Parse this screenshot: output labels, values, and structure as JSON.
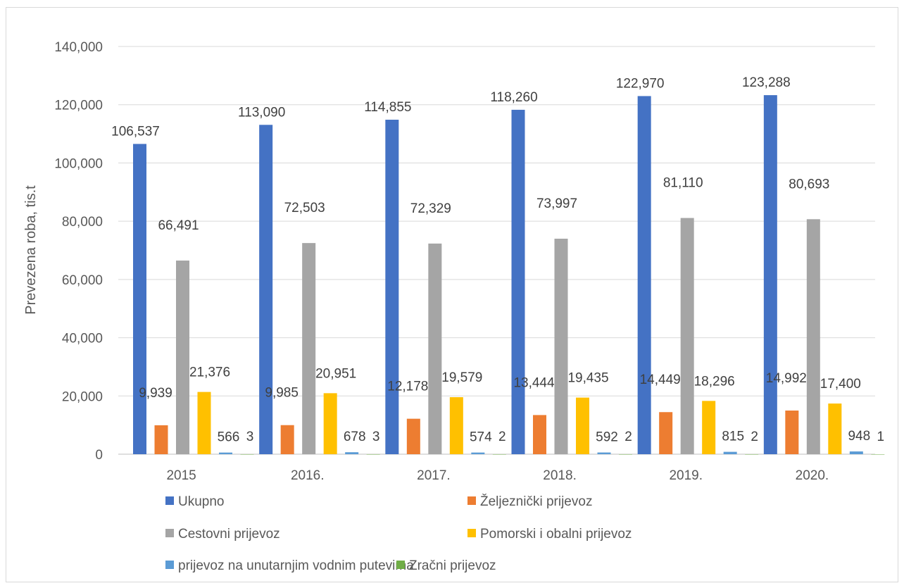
{
  "chart_data": {
    "type": "bar",
    "title": "",
    "xlabel": "",
    "ylabel": "Prevezena roba, tis.t",
    "ylim": [
      0,
      140000
    ],
    "yticks": [
      0,
      20000,
      40000,
      60000,
      80000,
      100000,
      120000,
      140000
    ],
    "ytick_labels": [
      "0",
      "20,000",
      "40,000",
      "60,000",
      "80,000",
      "100,000",
      "120,000",
      "140,000"
    ],
    "grid": true,
    "legend_position": "bottom",
    "categories": [
      "2015",
      "2016.",
      "2017.",
      "2018.",
      "2019.",
      "2020."
    ],
    "series": [
      {
        "name": "Ukupno",
        "color": "#4472C4",
        "values": [
          106537,
          113090,
          114855,
          118260,
          122970,
          123288
        ],
        "labels": [
          "106,537",
          "113,090",
          "114,855",
          "118,260",
          "122,970",
          "123,288"
        ]
      },
      {
        "name": "Željeznički prijevoz",
        "color": "#ED7D31",
        "values": [
          9939,
          9985,
          12178,
          13444,
          14449,
          14992
        ],
        "labels": [
          "9,939",
          "9,985",
          "12,178",
          "13,444",
          "14,449",
          "14,992"
        ]
      },
      {
        "name": "Cestovni prijevoz",
        "color": "#A5A5A5",
        "values": [
          66491,
          72503,
          72329,
          73997,
          81110,
          80693
        ],
        "labels": [
          "66,491",
          "72,503",
          "72,329",
          "73,997",
          "81,110",
          "80,693"
        ]
      },
      {
        "name": "Pomorski i obalni prijevoz",
        "color": "#FFC000",
        "values": [
          21376,
          20951,
          19579,
          19435,
          18296,
          17400
        ],
        "labels": [
          "21,376",
          "20,951",
          "19,579",
          "19,435",
          "18,296",
          "17,400"
        ]
      },
      {
        "name": "prijevoz na unutarnjim vodnim putevima",
        "color": "#5B9BD5",
        "values": [
          566,
          678,
          574,
          592,
          815,
          948
        ],
        "labels": [
          "566",
          "678",
          "574",
          "592",
          "815",
          "948"
        ]
      },
      {
        "name": "Zračni prijevoz",
        "color": "#70AD47",
        "values": [
          3,
          3,
          2,
          2,
          2,
          1
        ],
        "labels": [
          "3",
          "3",
          "2",
          "2",
          "2",
          "1"
        ]
      }
    ]
  }
}
